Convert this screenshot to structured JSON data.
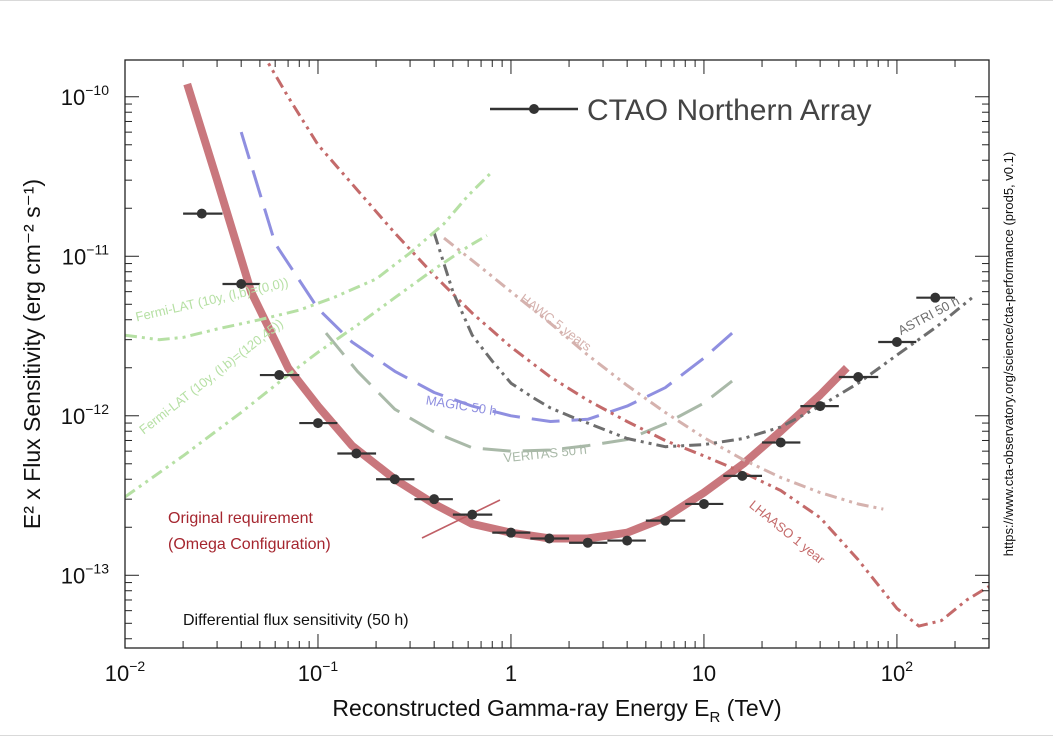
{
  "chart_data": {
    "type": "line",
    "title": "",
    "xlabel": "Reconstructed Gamma-ray Energy E",
    "xlabel_sub": "R",
    "xlabel_unit": "(TeV)",
    "ylabel": "E² x Flux Sensitivity (erg cm⁻² s⁻¹)",
    "xscale": "log",
    "yscale": "log",
    "xlim": [
      0.01,
      300
    ],
    "ylim": [
      3.5e-14,
      1.7e-10
    ],
    "x_ticks": [
      {
        "value": 0.01,
        "base": "10",
        "exp": "−2"
      },
      {
        "value": 0.1,
        "base": "10",
        "exp": "−1"
      },
      {
        "value": 1,
        "base": "1",
        "exp": ""
      },
      {
        "value": 10,
        "base": "10",
        "exp": ""
      },
      {
        "value": 100,
        "base": "10",
        "exp": "2"
      }
    ],
    "y_ticks": [
      {
        "value": 1e-10,
        "base": "10",
        "exp": "−10"
      },
      {
        "value": 1e-11,
        "base": "10",
        "exp": "−11"
      },
      {
        "value": 1e-12,
        "base": "10",
        "exp": "−12"
      },
      {
        "value": 1e-13,
        "base": "10",
        "exp": "−13"
      }
    ],
    "legend": {
      "position": "top-right",
      "label": "CTAO Northern Array"
    },
    "side_note": "https://www.cta-observatory.org/science/cta-performance (prod5, v0.1)",
    "bottom_note": "Differential flux sensitivity (50 h)",
    "annotation": {
      "line1": "Original requirement",
      "line2": "(Omega Configuration)"
    },
    "ctao_points": [
      {
        "x": 0.025,
        "y": 1.85e-11,
        "xlo": 0.02,
        "xhi": 0.032
      },
      {
        "x": 0.04,
        "y": 6.7e-12,
        "xlo": 0.032,
        "xhi": 0.05
      },
      {
        "x": 0.063,
        "y": 1.8e-12,
        "xlo": 0.05,
        "xhi": 0.08
      },
      {
        "x": 0.1,
        "y": 9e-13,
        "xlo": 0.08,
        "xhi": 0.126
      },
      {
        "x": 0.158,
        "y": 5.8e-13,
        "xlo": 0.126,
        "xhi": 0.2
      },
      {
        "x": 0.25,
        "y": 4e-13,
        "xlo": 0.2,
        "xhi": 0.316
      },
      {
        "x": 0.4,
        "y": 3e-13,
        "xlo": 0.316,
        "xhi": 0.5
      },
      {
        "x": 0.63,
        "y": 2.4e-13,
        "xlo": 0.5,
        "xhi": 0.8
      },
      {
        "x": 1.0,
        "y": 1.85e-13,
        "xlo": 0.8,
        "xhi": 1.26
      },
      {
        "x": 1.58,
        "y": 1.7e-13,
        "xlo": 1.26,
        "xhi": 2.0
      },
      {
        "x": 2.5,
        "y": 1.6e-13,
        "xlo": 2.0,
        "xhi": 3.16
      },
      {
        "x": 4.0,
        "y": 1.65e-13,
        "xlo": 3.16,
        "xhi": 5.0
      },
      {
        "x": 6.3,
        "y": 2.2e-13,
        "xlo": 5.0,
        "xhi": 8.0
      },
      {
        "x": 10.0,
        "y": 2.8e-13,
        "xlo": 8.0,
        "xhi": 12.6
      },
      {
        "x": 15.8,
        "y": 4.2e-13,
        "xlo": 12.6,
        "xhi": 20.0
      },
      {
        "x": 25.0,
        "y": 6.8e-13,
        "xlo": 20.0,
        "xhi": 31.6
      },
      {
        "x": 40.0,
        "y": 1.15e-12,
        "xlo": 31.6,
        "xhi": 50.0
      },
      {
        "x": 63.0,
        "y": 1.75e-12,
        "xlo": 50.0,
        "xhi": 80.0
      },
      {
        "x": 100.0,
        "y": 2.9e-12,
        "xlo": 80.0,
        "xhi": 126.0
      },
      {
        "x": 158.0,
        "y": 5.5e-12,
        "xlo": 126.0,
        "xhi": 200.0
      }
    ],
    "curves": [
      {
        "name": "Original requirement",
        "label": "",
        "color": "#c05f66",
        "dash": "",
        "width": 8,
        "x": [
          0.021,
          0.03,
          0.045,
          0.07,
          0.1,
          0.15,
          0.25,
          0.4,
          0.63,
          1.0,
          1.6,
          2.5,
          4.0,
          6.3,
          10,
          16,
          25,
          40,
          55
        ],
        "y": [
          1.2e-10,
          3e-11,
          6e-12,
          2e-12,
          1.15e-12,
          6.5e-13,
          4e-13,
          2.8e-13,
          2.1e-13,
          1.85e-13,
          1.7e-13,
          1.7e-13,
          1.85e-13,
          2.3e-13,
          3.3e-13,
          5e-13,
          8e-13,
          1.35e-12,
          2e-12
        ]
      },
      {
        "name": "MAGIC 50 h",
        "label": "MAGIC 50 h",
        "color": "#8f8fe0",
        "dash": "28 12",
        "width": 3,
        "x": [
          0.04,
          0.06,
          0.1,
          0.15,
          0.25,
          0.4,
          0.63,
          1.0,
          1.6,
          2.5,
          4.0,
          6.3,
          10,
          14
        ],
        "y": [
          6e-11,
          1.2e-11,
          4.7e-12,
          2.9e-12,
          1.9e-12,
          1.4e-12,
          1.15e-12,
          1e-12,
          9.2e-13,
          9.5e-13,
          1.15e-12,
          1.5e-12,
          2.3e-12,
          3.3e-12
        ]
      },
      {
        "name": "VERITAS 50 h",
        "label": "VERITAS 50 h",
        "color": "#a9b9a8",
        "dash": "28 12",
        "width": 3,
        "x": [
          0.11,
          0.16,
          0.25,
          0.4,
          0.63,
          1.0,
          1.6,
          2.5,
          4.0,
          6.3,
          10,
          14
        ],
        "y": [
          3.3e-12,
          1.9e-12,
          1.1e-12,
          7.9e-13,
          6.3e-13,
          6e-13,
          6.1e-13,
          6.5e-13,
          7.1e-13,
          8.9e-13,
          1.2e-12,
          1.65e-12
        ]
      },
      {
        "name": "HAWC 5 years",
        "label": "HAWC 5 years",
        "color": "#d5b2ae",
        "dash": "12 5 3 5 3 5",
        "width": 3,
        "x": [
          0.45,
          0.7,
          1.0,
          1.6,
          2.5,
          4.0,
          6.3,
          10,
          16,
          25,
          40,
          63,
          85
        ],
        "y": [
          1.3e-11,
          8.5e-12,
          6e-12,
          3.8e-12,
          2.4e-12,
          1.55e-12,
          1.05e-12,
          7.3e-13,
          5.3e-13,
          4.1e-13,
          3.3e-13,
          2.8e-13,
          2.6e-13
        ]
      },
      {
        "name": "LHAASO 1 year",
        "label": "LHAASO 1 year",
        "color": "#c46a6a",
        "dash": "12 5 3 5 3 5",
        "width": 3,
        "x": [
          0.05,
          0.07,
          0.1,
          0.16,
          0.25,
          0.4,
          0.63,
          1.0,
          1.6,
          2.5,
          4.0,
          6.3,
          10,
          16,
          25,
          40,
          63,
          100,
          130,
          170,
          230,
          300
        ],
        "y": [
          2e-10,
          1e-10,
          5e-11,
          2.6e-11,
          1.4e-11,
          7.6e-12,
          4.4e-12,
          2.7e-12,
          1.75e-12,
          1.25e-12,
          9.2e-13,
          7e-13,
          5.6e-13,
          4.4e-13,
          3.4e-13,
          2.3e-13,
          1.25e-13,
          6.2e-14,
          4.8e-14,
          5.2e-14,
          7e-14,
          8.5e-14
        ]
      },
      {
        "name": "ASTRI 50 h",
        "label": "ASTRI 50 h",
        "color": "#6e6e6e",
        "dash": "12 5 3 5 3 5",
        "width": 3,
        "x": [
          0.4,
          0.5,
          0.63,
          0.8,
          1.0,
          1.3,
          1.6,
          2.0,
          2.5,
          3.2,
          4.0,
          6.3,
          10,
          16,
          25,
          40,
          63,
          100,
          160,
          250
        ],
        "y": [
          1.4e-11,
          6e-12,
          3.2e-12,
          2.2e-12,
          1.6e-12,
          1.3e-12,
          1.12e-12,
          1e-12,
          9e-13,
          8e-13,
          7.2e-13,
          6.4e-13,
          6.6e-13,
          7.2e-13,
          8.5e-13,
          1.15e-12,
          1.6e-12,
          2.4e-12,
          3.6e-12,
          5.6e-12
        ]
      },
      {
        "name": "Fermi-LAT (10y, (l,b)=(0,0))",
        "label": "Fermi-LAT (10y, (l,b)=(0,0))",
        "color": "#b6e0a4",
        "dash": "12 5 3 5 3 5",
        "width": 3,
        "x": [
          0.01,
          0.015,
          0.02,
          0.03,
          0.05,
          0.08,
          0.12,
          0.2,
          0.3,
          0.45,
          0.6,
          0.8
        ],
        "y": [
          3.2e-12,
          3e-12,
          3.1e-12,
          3.5e-12,
          4e-12,
          4.6e-12,
          5.5e-12,
          7.2e-12,
          1.05e-11,
          1.6e-11,
          2.4e-11,
          3.4e-11
        ]
      },
      {
        "name": "Fermi-LAT (10y, (l,b)=(120,45))",
        "label": "Fermi-LAT (10y, (l,b)=(120,45))",
        "color": "#b6e0a4",
        "dash": "12 5 3 5 3 5",
        "width": 3,
        "x": [
          0.01,
          0.02,
          0.04,
          0.07,
          0.1,
          0.16,
          0.25,
          0.4,
          0.6,
          0.75
        ],
        "y": [
          3.1e-13,
          5.6e-13,
          1.05e-12,
          1.8e-12,
          2.5e-12,
          3.7e-12,
          5.5e-12,
          8.3e-12,
          1.15e-11,
          1.35e-11
        ]
      }
    ],
    "curve_label_positions": [
      {
        "name": "MAGIC 50 h",
        "x": 0.36,
        "y": 1.18e-12,
        "angle": 9
      },
      {
        "name": "VERITAS 50 h",
        "x": 0.92,
        "y": 5.1e-13,
        "angle": -6
      },
      {
        "name": "HAWC 5 years",
        "x": 1.1,
        "y": 5.3e-12,
        "angle": 37
      },
      {
        "name": "LHAASO 1 year",
        "x": 17,
        "y": 2.7e-13,
        "angle": 39
      },
      {
        "name": "ASTRI 50 h",
        "x": 105,
        "y": 3.2e-12,
        "angle": -28
      },
      {
        "name": "Fermi-LAT (10y, (l,b)=(0,0))",
        "x": 0.0115,
        "y": 3.9e-12,
        "angle": -13
      },
      {
        "name": "Fermi-LAT (10y, (l,b)=(120,45))",
        "x": 0.0125,
        "y": 7.6e-13,
        "angle": -38
      }
    ]
  }
}
